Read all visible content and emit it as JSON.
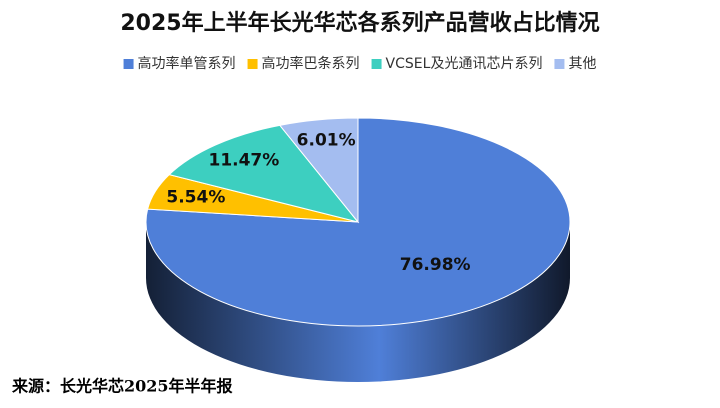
{
  "chart_data": {
    "type": "pie",
    "title": "2025年上半年长光华芯各系列产品营收占比情况",
    "categories": [
      "高功率单管系列",
      "高功率巴条系列",
      "VCSEL及光通讯芯片系列",
      "其他"
    ],
    "values": [
      76.98,
      5.54,
      11.47,
      6.01
    ],
    "value_labels": [
      "76.98%",
      "5.54%",
      "11.47%",
      "6.01%"
    ],
    "colors": [
      "#4f7fd8",
      "#ffc000",
      "#3dcfc0",
      "#a4bdf0"
    ],
    "legend": "top",
    "source": "来源：长光华芯2025年半年报"
  }
}
